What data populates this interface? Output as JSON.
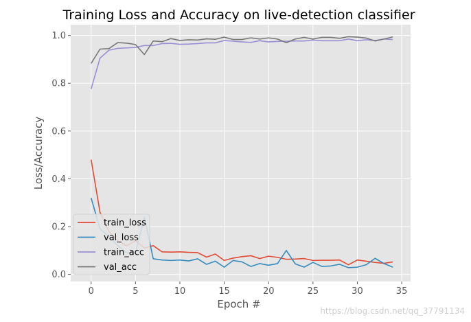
{
  "chart_data": {
    "type": "line",
    "title": "Training Loss and Accuracy on live-detection classifier",
    "xlabel": "Epoch #",
    "ylabel": "Loss/Accuracy",
    "xlim": [
      -2.3,
      36.0
    ],
    "ylim": [
      -0.03,
      1.045
    ],
    "xticks": [
      0,
      5,
      10,
      15,
      20,
      25,
      30,
      35
    ],
    "yticks": [
      0.0,
      0.2,
      0.4,
      0.6,
      0.8,
      1.0
    ],
    "xtick_labels": [
      "0",
      "5",
      "10",
      "15",
      "20",
      "25",
      "30",
      "35"
    ],
    "ytick_labels": [
      "0.0",
      "0.2",
      "0.4",
      "0.6",
      "0.8",
      "1.0"
    ],
    "grid": true,
    "legend_position": "lower-left",
    "x": [
      0,
      1,
      2,
      3,
      4,
      5,
      6,
      7,
      8,
      9,
      10,
      11,
      12,
      13,
      14,
      15,
      16,
      17,
      18,
      19,
      20,
      21,
      22,
      23,
      24,
      25,
      26,
      27,
      28,
      29,
      30,
      31,
      32,
      33,
      34
    ],
    "series": [
      {
        "name": "train_loss",
        "color": "#E24A33",
        "values": [
          0.48,
          0.26,
          0.18,
          0.14,
          0.12,
          0.14,
          0.11,
          0.12,
          0.094,
          0.093,
          0.094,
          0.092,
          0.091,
          0.072,
          0.085,
          0.058,
          0.068,
          0.074,
          0.078,
          0.066,
          0.076,
          0.071,
          0.063,
          0.064,
          0.066,
          0.058,
          0.059,
          0.059,
          0.06,
          0.04,
          0.06,
          0.055,
          0.05,
          0.046,
          0.052
        ]
      },
      {
        "name": "val_loss",
        "color": "#348ABD",
        "values": [
          0.32,
          0.19,
          0.16,
          0.12,
          0.09,
          0.09,
          0.24,
          0.065,
          0.06,
          0.058,
          0.06,
          0.056,
          0.065,
          0.042,
          0.055,
          0.03,
          0.058,
          0.052,
          0.033,
          0.045,
          0.038,
          0.045,
          0.1,
          0.044,
          0.03,
          0.05,
          0.033,
          0.035,
          0.042,
          0.028,
          0.03,
          0.04,
          0.067,
          0.045,
          0.03
        ]
      },
      {
        "name": "train_acc",
        "color": "#988ED5",
        "values": [
          0.776,
          0.905,
          0.938,
          0.946,
          0.948,
          0.95,
          0.958,
          0.958,
          0.966,
          0.967,
          0.963,
          0.964,
          0.966,
          0.969,
          0.969,
          0.979,
          0.976,
          0.973,
          0.971,
          0.978,
          0.973,
          0.975,
          0.976,
          0.977,
          0.977,
          0.981,
          0.978,
          0.978,
          0.978,
          0.985,
          0.978,
          0.982,
          0.979,
          0.985,
          0.983
        ]
      },
      {
        "name": "val_acc",
        "color": "#777777",
        "values": [
          0.883,
          0.943,
          0.945,
          0.97,
          0.968,
          0.962,
          0.92,
          0.977,
          0.974,
          0.987,
          0.979,
          0.982,
          0.981,
          0.986,
          0.984,
          0.993,
          0.983,
          0.983,
          0.99,
          0.985,
          0.99,
          0.985,
          0.97,
          0.985,
          0.992,
          0.985,
          0.992,
          0.992,
          0.988,
          0.995,
          0.993,
          0.989,
          0.977,
          0.985,
          0.994
        ]
      }
    ]
  },
  "watermark": "https://blog.csdn.net/qq_37791134"
}
